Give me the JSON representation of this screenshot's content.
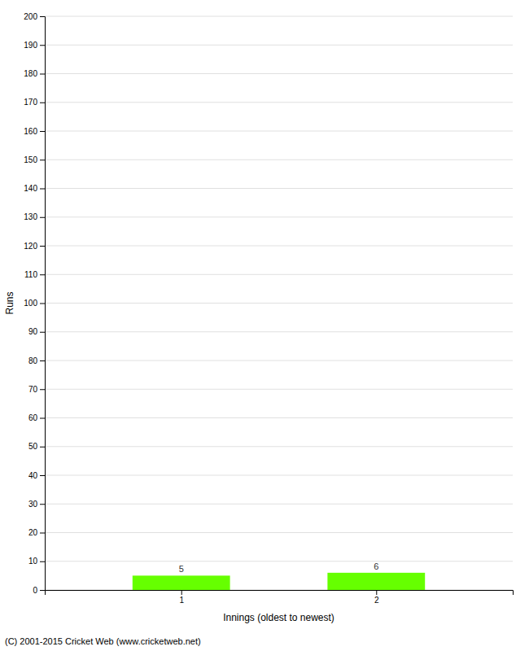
{
  "chart_data": {
    "type": "bar",
    "xlabel": "Innings (oldest to newest)",
    "ylabel": "Runs",
    "x": [
      1,
      2
    ],
    "values": [
      5,
      6
    ],
    "color": "#66ff00",
    "xlim": [
      0.3,
      2.7
    ],
    "xticks": [
      1,
      2
    ],
    "ylim": [
      0,
      200
    ],
    "yticks": [
      0,
      10,
      20,
      30,
      40,
      50,
      60,
      70,
      80,
      90,
      100,
      110,
      120,
      130,
      140,
      150,
      160,
      170,
      180,
      190,
      200
    ],
    "grid": true,
    "data_labels": true,
    "annotations": [
      "(C) 2001-2015 Cricket Web (www.cricketweb.net)"
    ]
  }
}
